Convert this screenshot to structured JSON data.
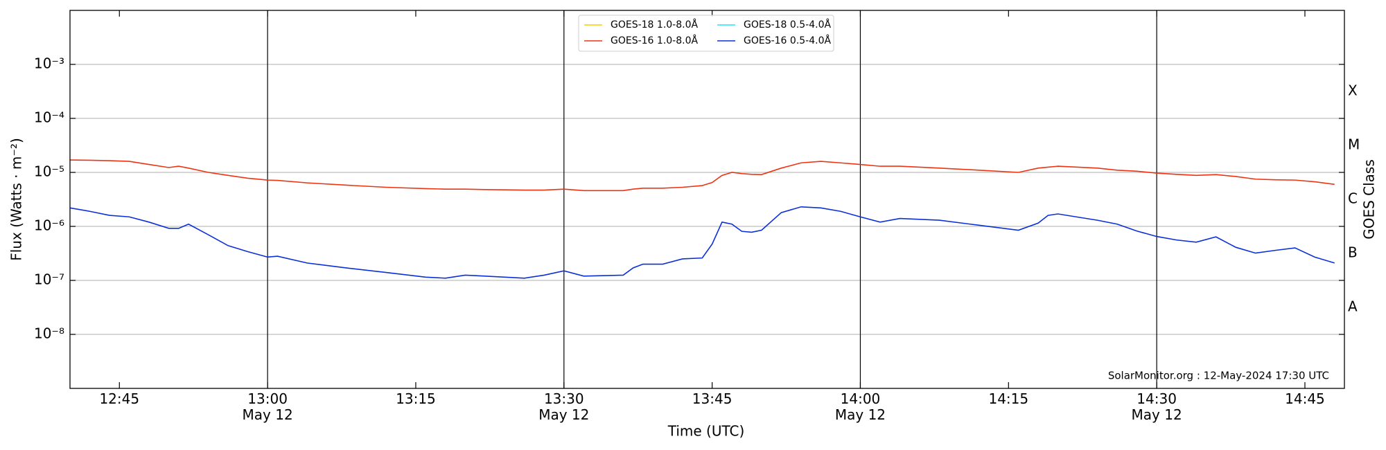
{
  "chart_data": {
    "type": "line",
    "xlabel": "Time (UTC)",
    "ylabel": "Flux (Watts · m⁻²)",
    "y2label": "GOES Class",
    "annotation": "SolarMonitor.org : 12-May-2024 17:30 UTC",
    "log_y": true,
    "grid": true,
    "legend": "upper center",
    "x": [
      "12:40",
      "12:42",
      "12:44",
      "12:46",
      "12:48",
      "12:50",
      "12:51",
      "12:52",
      "12:54",
      "12:56",
      "12:58",
      "13:00",
      "13:01",
      "13:04",
      "13:08",
      "13:12",
      "13:16",
      "13:18",
      "13:20",
      "13:22",
      "13:26",
      "13:28",
      "13:30",
      "13:32",
      "13:36",
      "13:37",
      "13:38",
      "13:40",
      "13:42",
      "13:44",
      "13:45",
      "13:46",
      "13:47",
      "13:48",
      "13:49",
      "13:50",
      "13:52",
      "13:54",
      "13:56",
      "13:58",
      "14:00",
      "14:02",
      "14:04",
      "14:08",
      "14:12",
      "14:16",
      "14:18",
      "14:19",
      "14:20",
      "14:24",
      "14:26",
      "14:28",
      "14:30",
      "14:32",
      "14:34",
      "14:36",
      "14:38",
      "14:40",
      "14:42",
      "14:44",
      "14:46",
      "14:48"
    ],
    "series": [
      {
        "name": "GOES-18 1.0-8.0Å",
        "color": "#f2d300"
      },
      {
        "name": "GOES-16 1.0-8.0Å",
        "color": "#ee3311",
        "values": [
          1.7e-05,
          1.68e-05,
          1.65e-05,
          1.6e-05,
          1.4e-05,
          1.23e-05,
          1.3e-05,
          1.2e-05,
          1e-05,
          8.8e-06,
          7.8e-06,
          7.2e-06,
          7.1e-06,
          6.4e-06,
          5.8e-06,
          5.3e-06,
          5e-06,
          4.9e-06,
          4.9e-06,
          4.8e-06,
          4.7e-06,
          4.7e-06,
          4.9e-06,
          4.6e-06,
          4.6e-06,
          4.9e-06,
          5.1e-06,
          5.1e-06,
          5.3e-06,
          5.7e-06,
          6.5e-06,
          8.8e-06,
          1e-05,
          9.5e-06,
          9.2e-06,
          9.1e-06,
          1.2e-05,
          1.5e-05,
          1.6e-05,
          1.5e-05,
          1.4e-05,
          1.3e-05,
          1.3e-05,
          1.2e-05,
          1.1e-05,
          1e-05,
          1.2e-05,
          1.25e-05,
          1.3e-05,
          1.2e-05,
          1.1e-05,
          1.05e-05,
          9.7e-06,
          9.2e-06,
          8.8e-06,
          9.1e-06,
          8.4e-06,
          7.5e-06,
          7.3e-06,
          7.2e-06,
          6.7e-06,
          6e-06
        ]
      },
      {
        "name": "GOES-18 0.5-4.0Å",
        "color": "#22e5f0"
      },
      {
        "name": "GOES-16 0.5-4.0Å",
        "color": "#0a2fd8",
        "values": [
          2.2e-06,
          1.9e-06,
          1.6e-06,
          1.5e-06,
          1.2e-06,
          9.2e-07,
          9.2e-07,
          1.1e-06,
          7e-07,
          4.4e-07,
          3.4e-07,
          2.7e-07,
          2.8e-07,
          2.1e-07,
          1.7e-07,
          1.4e-07,
          1.15e-07,
          1.1e-07,
          1.25e-07,
          1.2e-07,
          1.1e-07,
          1.25e-07,
          1.5e-07,
          1.2e-07,
          1.25e-07,
          1.7e-07,
          2e-07,
          2e-07,
          2.5e-07,
          2.6e-07,
          4.7e-07,
          1.2e-06,
          1.1e-06,
          8.1e-07,
          7.8e-07,
          8.5e-07,
          1.8e-06,
          2.3e-06,
          2.2e-06,
          1.9e-06,
          1.5e-06,
          1.2e-06,
          1.4e-06,
          1.3e-06,
          1.05e-06,
          8.5e-07,
          1.15e-06,
          1.6e-06,
          1.7e-06,
          1.3e-06,
          1.1e-06,
          8.2e-07,
          6.5e-07,
          5.6e-07,
          5.1e-07,
          6.4e-07,
          4.1e-07,
          3.2e-07,
          3.6e-07,
          4e-07,
          2.7e-07,
          2.1e-07
        ]
      }
    ],
    "xlim": [
      "12:40",
      "14:49"
    ],
    "xticks": [
      "12:45",
      {
        "value": "13:00",
        "label": "13:00\nMay 12"
      },
      "13:15",
      {
        "value": "13:30",
        "label": "13:30\nMay 12"
      },
      "13:45",
      {
        "value": "14:00",
        "label": "14:00\nMay 12"
      },
      "14:15",
      {
        "value": "14:30",
        "label": "14:30\nMay 12"
      },
      "14:45"
    ],
    "vlines": [
      "13:00",
      "13:30",
      "14:00",
      "14:30"
    ],
    "ylim": [
      1e-09,
      0.01
    ],
    "yticks": [
      {
        "value": 1e-08,
        "label": "10⁻⁸"
      },
      {
        "value": 1e-07,
        "label": "10⁻⁷"
      },
      {
        "value": 1e-06,
        "label": "10⁻⁶"
      },
      {
        "value": 1e-05,
        "label": "10⁻⁵"
      },
      {
        "value": 0.0001,
        "label": "10⁻⁴"
      },
      {
        "value": 0.001,
        "label": "10⁻³"
      }
    ],
    "y2lim": [
      1e-09,
      0.01
    ],
    "y2ticks": [
      {
        "value": 3.16e-08,
        "label": "A"
      },
      {
        "value": 3.16e-07,
        "label": "B"
      },
      {
        "value": 3.16e-06,
        "label": "C"
      },
      {
        "value": 3.16e-05,
        "label": "M"
      },
      {
        "value": 0.000316,
        "label": "X"
      }
    ]
  }
}
